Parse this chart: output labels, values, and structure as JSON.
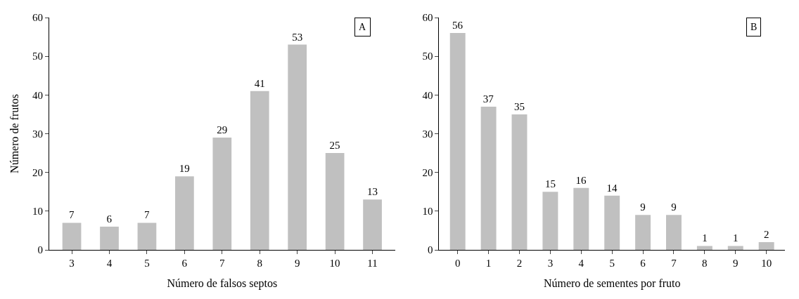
{
  "chart_data": [
    {
      "type": "bar",
      "xlabel": "Número de falsos septos",
      "ylabel": "Número de frutos",
      "annotations": [
        "A"
      ],
      "categories": [
        "3",
        "4",
        "5",
        "6",
        "7",
        "8",
        "9",
        "10",
        "11"
      ],
      "values": [
        7,
        6,
        7,
        19,
        29,
        41,
        53,
        25,
        13
      ],
      "color": "#c0c0c0",
      "ylim": [
        0,
        60
      ],
      "yticks": [
        0,
        10,
        20,
        30,
        40,
        50,
        60
      ],
      "data_labels": true
    },
    {
      "type": "bar",
      "xlabel": "Número de sementes por fruto",
      "annotations": [
        "B"
      ],
      "categories": [
        "0",
        "1",
        "2",
        "3",
        "4",
        "5",
        "6",
        "7",
        "8",
        "9",
        "10"
      ],
      "values": [
        56,
        37,
        35,
        15,
        16,
        14,
        9,
        9,
        1,
        1,
        2
      ],
      "color": "#c0c0c0",
      "ylim": [
        0,
        60
      ],
      "yticks": [
        0,
        10,
        20,
        30,
        40,
        50,
        60
      ],
      "data_labels": true
    }
  ]
}
